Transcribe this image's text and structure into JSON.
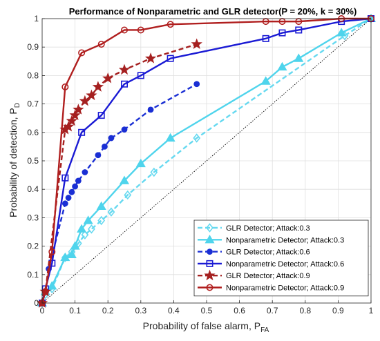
{
  "chart_data": {
    "type": "line",
    "title": "Performance of Nonparametric and GLR detector(P = 20%, k = 30%)",
    "xlabel": {
      "main": "Probability of false alarm, P",
      "sub": "FA"
    },
    "ylabel": {
      "main": "Probability of detection, P",
      "sub": "D"
    },
    "xlim": [
      0,
      1
    ],
    "ylim": [
      0,
      1
    ],
    "xticks": [
      "0",
      "0.1",
      "0.2",
      "0.3",
      "0.4",
      "0.5",
      "0.6",
      "0.7",
      "0.8",
      "0.9",
      "1"
    ],
    "yticks": [
      "0",
      "0.1",
      "0.2",
      "0.3",
      "0.4",
      "0.5",
      "0.6",
      "0.7",
      "0.8",
      "0.9",
      "1"
    ],
    "grid": true,
    "legend_position": "bottom-right",
    "reference_line": {
      "x": [
        0,
        1
      ],
      "y": [
        0,
        1
      ],
      "color": "#000000",
      "style": "dotted"
    },
    "series": [
      {
        "name": "GLR Detector; Attack:0.3",
        "color": "#66d9f0",
        "dash": "dashed",
        "marker": "diamond",
        "filled": false,
        "x": [
          0,
          0.01,
          0.03,
          0.07,
          0.09,
          0.11,
          0.13,
          0.15,
          0.18,
          0.21,
          0.26,
          0.34,
          0.47,
          0.92,
          1.0
        ],
        "y": [
          0,
          0.03,
          0.05,
          0.16,
          0.18,
          0.21,
          0.24,
          0.26,
          0.29,
          0.32,
          0.38,
          0.46,
          0.58,
          0.94,
          1.0
        ]
      },
      {
        "name": "Nonparametric Detector; Attack:0.3",
        "color": "#4fd4ec",
        "dash": "solid",
        "marker": "triangle",
        "filled": true,
        "x": [
          0,
          0.01,
          0.03,
          0.07,
          0.09,
          0.1,
          0.12,
          0.14,
          0.18,
          0.25,
          0.3,
          0.39,
          0.68,
          0.73,
          0.78,
          0.91,
          1.0
        ],
        "y": [
          0,
          0.04,
          0.06,
          0.16,
          0.17,
          0.2,
          0.26,
          0.29,
          0.34,
          0.43,
          0.49,
          0.58,
          0.78,
          0.83,
          0.86,
          0.95,
          1.0
        ]
      },
      {
        "name": "GLR Detector; Attack:0.6",
        "color": "#1a2fd4",
        "dash": "dashed",
        "marker": "circle",
        "filled": true,
        "x": [
          0,
          0.01,
          0.02,
          0.07,
          0.08,
          0.09,
          0.1,
          0.11,
          0.13,
          0.17,
          0.19,
          0.21,
          0.25,
          0.33,
          0.47
        ],
        "y": [
          0,
          0.04,
          0.12,
          0.35,
          0.37,
          0.39,
          0.41,
          0.43,
          0.46,
          0.52,
          0.55,
          0.58,
          0.61,
          0.68,
          0.77
        ]
      },
      {
        "name": "Nonparametric Detector; Attack:0.6",
        "color": "#1a1ad4",
        "dash": "solid",
        "marker": "square",
        "filled": false,
        "x": [
          0,
          0.01,
          0.03,
          0.07,
          0.12,
          0.18,
          0.25,
          0.3,
          0.39,
          0.68,
          0.73,
          0.78,
          0.91,
          1.0
        ],
        "y": [
          0,
          0.05,
          0.14,
          0.44,
          0.6,
          0.66,
          0.77,
          0.8,
          0.86,
          0.93,
          0.95,
          0.96,
          0.99,
          1.0
        ]
      },
      {
        "name": "GLR Detector; Attack:0.9",
        "color": "#a52020",
        "dash": "dashed",
        "marker": "star",
        "filled": true,
        "x": [
          0,
          0.01,
          0.07,
          0.08,
          0.09,
          0.1,
          0.11,
          0.13,
          0.15,
          0.17,
          0.2,
          0.25,
          0.33,
          0.47
        ],
        "y": [
          0,
          0.04,
          0.61,
          0.62,
          0.64,
          0.66,
          0.68,
          0.71,
          0.73,
          0.76,
          0.79,
          0.82,
          0.86,
          0.91
        ]
      },
      {
        "name": "Nonparametric Detector; Attack:0.9",
        "color": "#b01e1e",
        "dash": "solid",
        "marker": "circle",
        "filled": false,
        "x": [
          0,
          0.01,
          0.03,
          0.07,
          0.12,
          0.18,
          0.25,
          0.3,
          0.39,
          0.68,
          0.73,
          0.78,
          0.91,
          1.0
        ],
        "y": [
          0,
          0.04,
          0.18,
          0.76,
          0.88,
          0.91,
          0.96,
          0.96,
          0.98,
          0.99,
          0.99,
          0.99,
          1.0,
          1.0
        ]
      }
    ]
  }
}
